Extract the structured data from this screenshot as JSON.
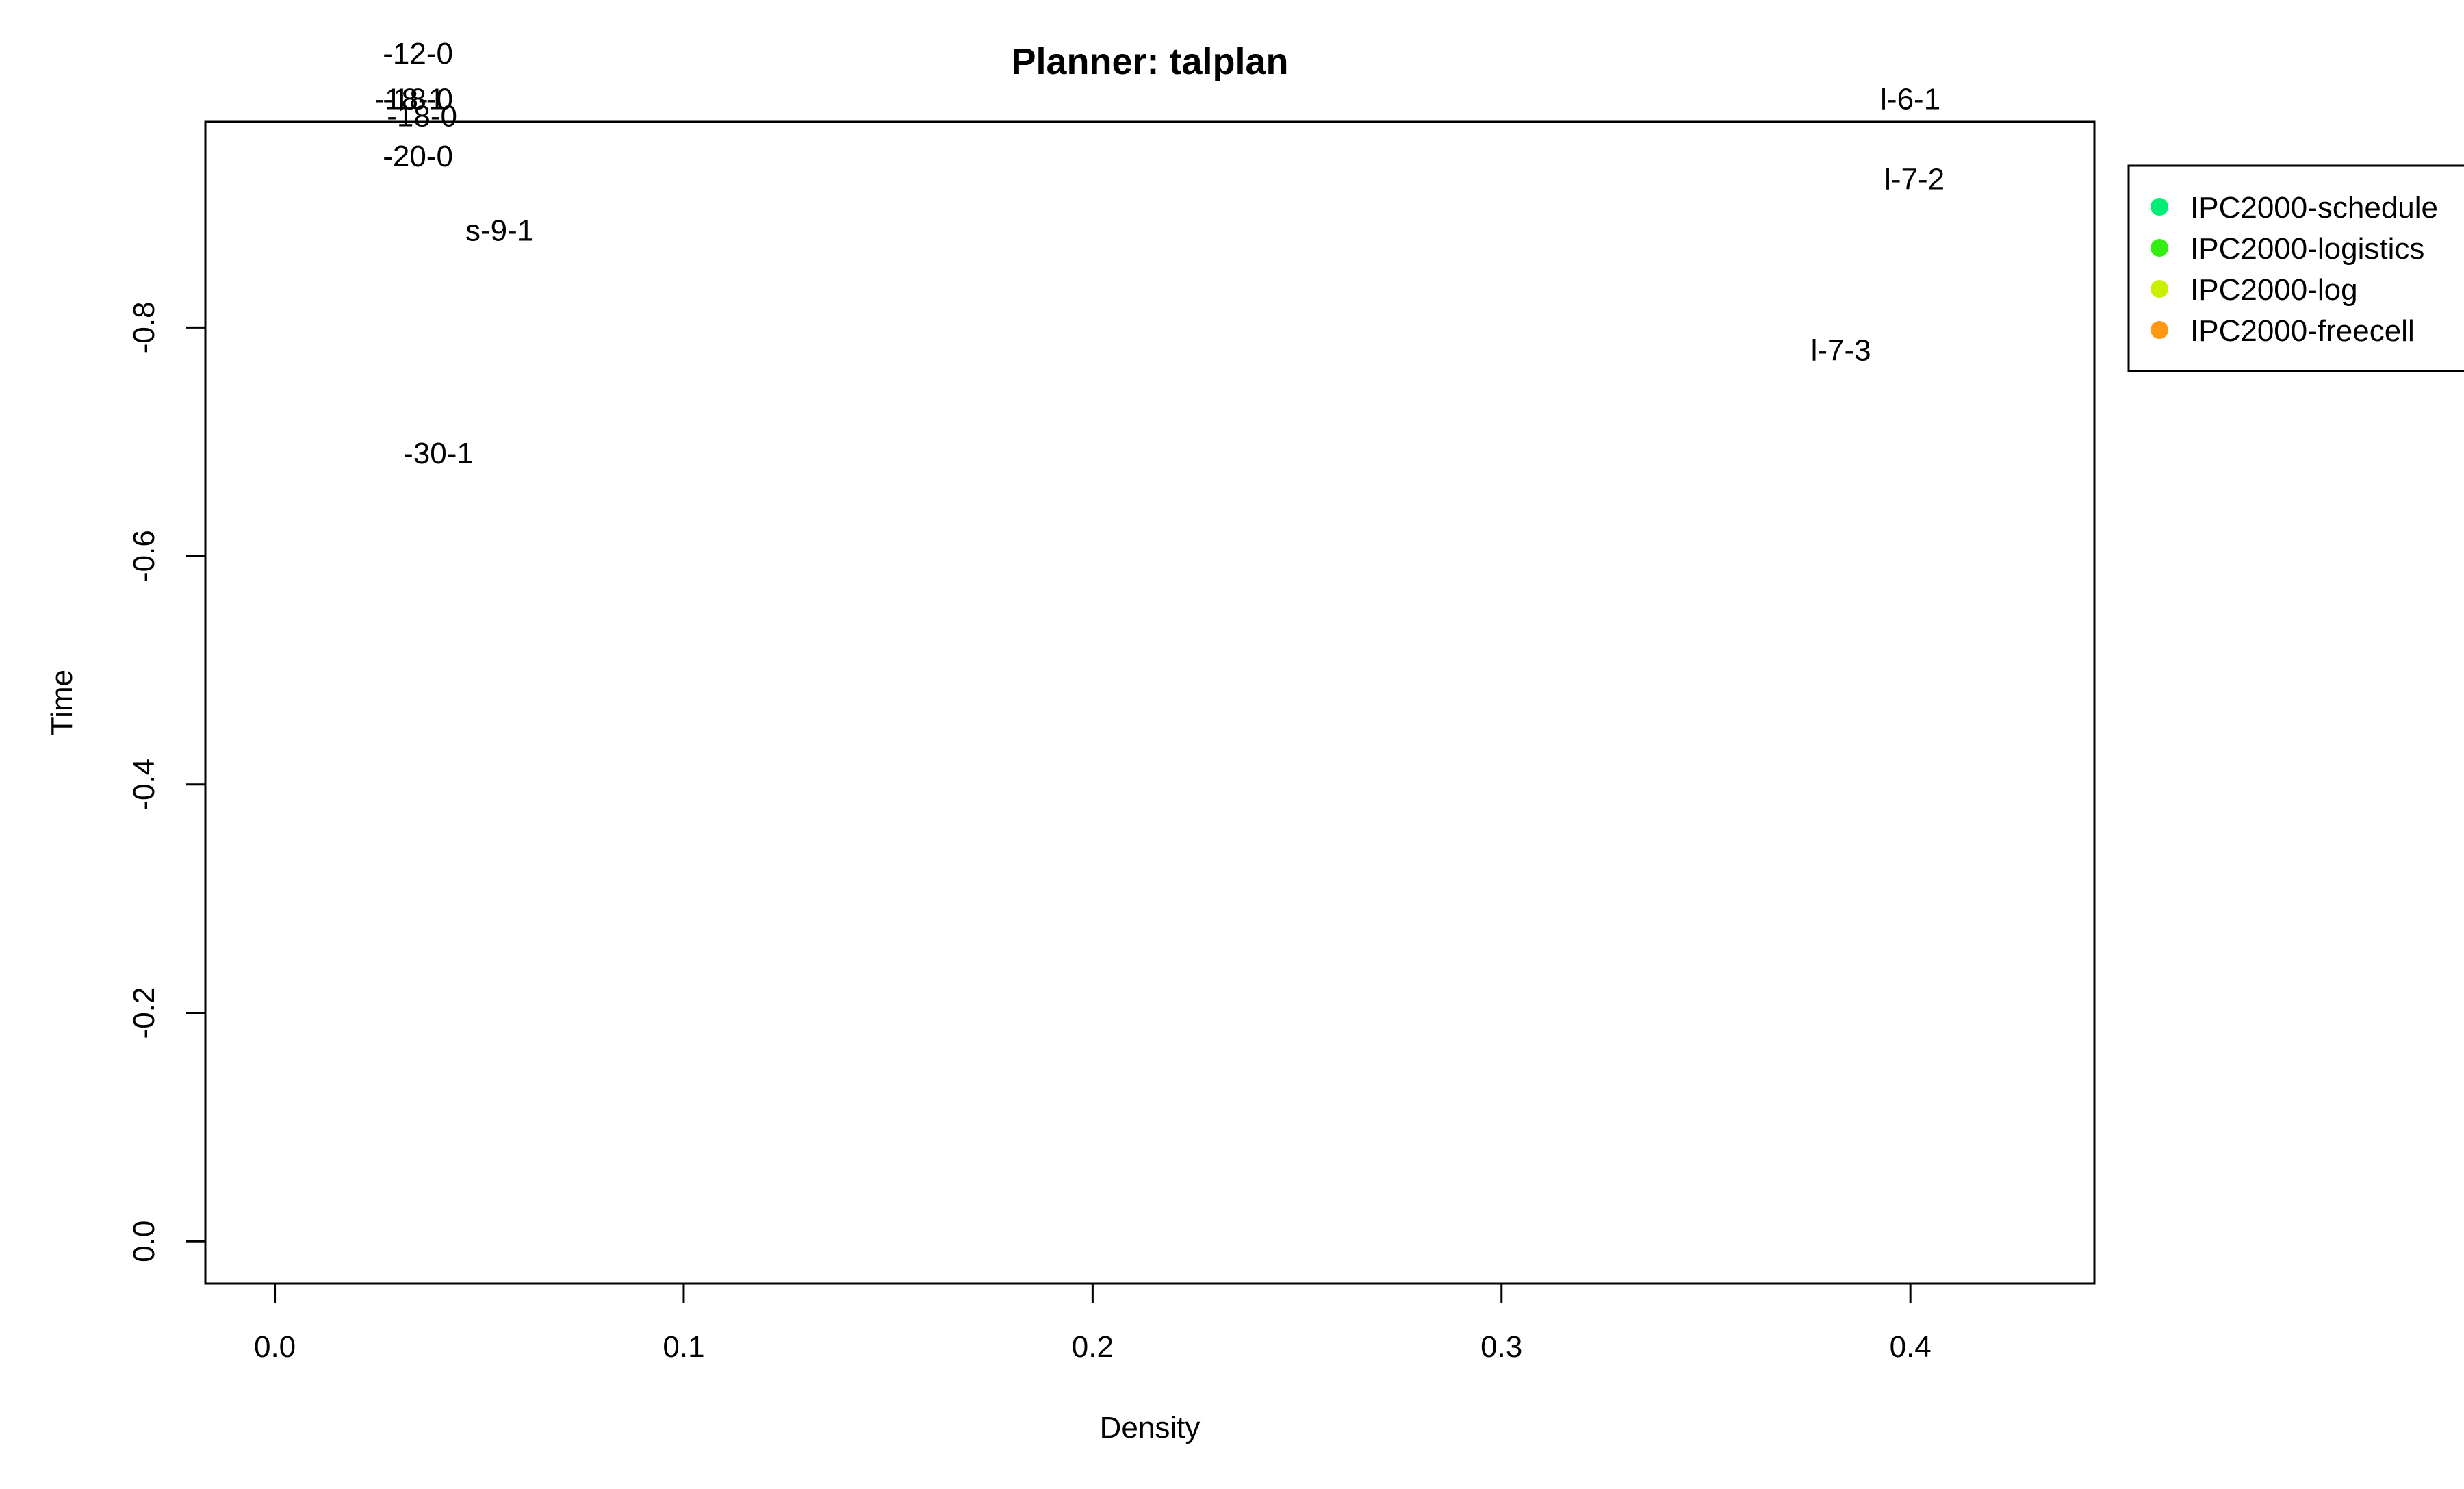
{
  "chart_data": {
    "type": "scatter",
    "title": "Planner: talplan",
    "xlabel": "Density",
    "ylabel": "Time",
    "xlim": [
      -0.017,
      0.445
    ],
    "ylim": [
      0.037,
      -0.98
    ],
    "x_ticks": [
      "0.0",
      "0.1",
      "0.2",
      "0.3",
      "0.4"
    ],
    "y_ticks": [
      "0.0",
      "-0.2",
      "-0.4",
      "-0.6",
      "-0.8"
    ],
    "grid": false,
    "legend_position": "right",
    "legend": [
      {
        "label": "IPC2000-schedule",
        "color": "#00ee76"
      },
      {
        "label": "IPC2000-logistics",
        "color": "#33ee11"
      },
      {
        "label": "IPC2000-log",
        "color": "#ccee00"
      },
      {
        "label": "IPC2000-freecell",
        "color": "#ff9911"
      }
    ],
    "point_labels": [
      {
        "text": "-12-0",
        "x": 0.035,
        "y": -1.04
      },
      {
        "text": "-18-1",
        "x": 0.033,
        "y": -1.0
      },
      {
        "text": "-18-0",
        "x": 0.035,
        "y": -1.0
      },
      {
        "text": "-18-0",
        "x": 0.036,
        "y": -0.985
      },
      {
        "text": "-20-0",
        "x": 0.035,
        "y": -0.95
      },
      {
        "text": "s-9-1",
        "x": 0.055,
        "y": -0.885
      },
      {
        "text": "-30-1",
        "x": 0.04,
        "y": -0.69
      },
      {
        "text": "l-6-1",
        "x": 0.4,
        "y": -1.0
      },
      {
        "text": "l-7-2",
        "x": 0.401,
        "y": -0.93
      },
      {
        "text": "l-7-3",
        "x": 0.383,
        "y": -0.78
      }
    ]
  }
}
